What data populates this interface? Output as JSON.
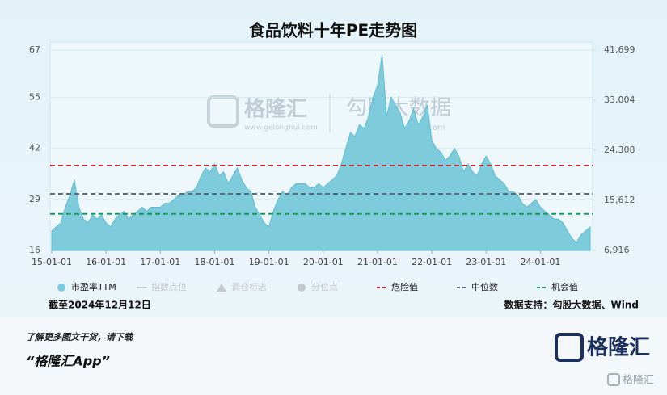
{
  "chart_data": {
    "type": "area",
    "title": "食品饮料十年PE走势图",
    "x": [
      "15-01-01",
      "15-02-01",
      "15-03-01",
      "15-04-01",
      "15-05-01",
      "15-06-01",
      "15-07-01",
      "15-08-01",
      "15-09-01",
      "15-10-01",
      "15-11-01",
      "15-12-01",
      "16-01-01",
      "16-02-01",
      "16-03-01",
      "16-04-01",
      "16-05-01",
      "16-06-01",
      "16-07-01",
      "16-08-01",
      "16-09-01",
      "16-10-01",
      "16-11-01",
      "16-12-01",
      "17-01-01",
      "17-02-01",
      "17-03-01",
      "17-04-01",
      "17-05-01",
      "17-06-01",
      "17-07-01",
      "17-08-01",
      "17-09-01",
      "17-10-01",
      "17-11-01",
      "17-12-01",
      "18-01-01",
      "18-02-01",
      "18-03-01",
      "18-04-01",
      "18-05-01",
      "18-06-01",
      "18-07-01",
      "18-08-01",
      "18-09-01",
      "18-10-01",
      "18-11-01",
      "18-12-01",
      "19-01-01",
      "19-02-01",
      "19-03-01",
      "19-04-01",
      "19-05-01",
      "19-06-01",
      "19-07-01",
      "19-08-01",
      "19-09-01",
      "19-10-01",
      "19-11-01",
      "19-12-01",
      "20-01-01",
      "20-02-01",
      "20-03-01",
      "20-04-01",
      "20-05-01",
      "20-06-01",
      "20-07-01",
      "20-08-01",
      "20-09-01",
      "20-10-01",
      "20-11-01",
      "20-12-01",
      "21-01-01",
      "21-02-01",
      "21-03-01",
      "21-04-01",
      "21-05-01",
      "21-06-01",
      "21-07-01",
      "21-08-01",
      "21-09-01",
      "21-10-01",
      "21-11-01",
      "21-12-01",
      "22-01-01",
      "22-02-01",
      "22-03-01",
      "22-04-01",
      "22-05-01",
      "22-06-01",
      "22-07-01",
      "22-08-01",
      "22-09-01",
      "22-10-01",
      "22-11-01",
      "22-12-01",
      "23-01-01",
      "23-02-01",
      "23-03-01",
      "23-04-01",
      "23-05-01",
      "23-06-01",
      "23-07-01",
      "23-08-01",
      "23-09-01",
      "23-10-01",
      "23-11-01",
      "23-12-01",
      "24-01-01",
      "24-02-01",
      "24-03-01",
      "24-04-01",
      "24-05-01",
      "24-06-01",
      "24-07-01",
      "24-08-01",
      "24-09-01",
      "24-10-01",
      "24-11-01",
      "24-12-01"
    ],
    "series": [
      {
        "name": "市盈率TTM",
        "color": "#7ecbdc",
        "values": [
          21,
          22,
          23,
          27,
          30,
          34,
          27,
          24,
          23,
          25,
          24,
          25,
          23,
          22,
          24,
          25,
          26,
          24,
          25,
          26,
          27,
          26,
          27,
          27,
          27,
          28,
          28,
          29,
          30,
          30,
          31,
          31,
          32,
          35,
          37,
          36,
          38,
          35,
          36,
          33,
          35,
          37,
          34,
          32,
          31,
          27,
          25,
          23,
          22,
          26,
          29,
          31,
          30,
          32,
          33,
          33,
          33,
          32,
          32,
          33,
          32,
          33,
          34,
          35,
          38,
          42,
          46,
          45,
          48,
          47,
          50,
          55,
          58,
          66,
          50,
          55,
          53,
          51,
          47,
          49,
          52,
          48,
          50,
          53,
          44,
          42,
          41,
          39,
          40,
          42,
          40,
          36,
          38,
          36,
          35,
          38,
          40,
          38,
          35,
          34,
          33,
          31,
          31,
          30,
          28,
          27,
          28,
          29,
          27,
          26,
          25,
          24,
          24,
          23,
          21,
          19,
          18,
          20,
          21,
          22
        ]
      }
    ],
    "legend_inactive": [
      {
        "name": "指数点位",
        "symbol": "line"
      },
      {
        "name": "调仓标志",
        "symbol": "triangle"
      },
      {
        "name": "分位点",
        "symbol": "circle"
      }
    ],
    "inactive_color": "#c4c8cc",
    "reference_lines": [
      {
        "name": "危险值",
        "value": 37.6,
        "color": "#c0282e"
      },
      {
        "name": "中位数",
        "value": 30.4,
        "color": "#5d6b7a"
      },
      {
        "name": "机会值",
        "value": 25.3,
        "color": "#1a9a5a"
      }
    ],
    "ylim": [
      16,
      67
    ],
    "yticks": [
      16,
      29,
      42,
      55,
      67
    ],
    "y2lim": [
      6916,
      41699
    ],
    "y2ticks": [
      {
        "value": 6916,
        "label": "6,916"
      },
      {
        "value": 15612,
        "label": "15,612"
      },
      {
        "value": 24308,
        "label": "24,308"
      },
      {
        "value": 33004,
        "label": "33,004"
      },
      {
        "value": 41699,
        "label": "41,699"
      }
    ],
    "grid": true,
    "date_note": "截至2024年12月12日",
    "source": "数据支持：勾股大数据、Wind"
  },
  "watermark": {
    "brand": "格隆汇",
    "brand_url": "www.gelonghui.com",
    "data_brand": "勾股大数据",
    "data_url": "www.gogudata.com"
  },
  "footer": {
    "line1": "了解更多图文干货，请下载",
    "line2": "“格隆汇App”",
    "logo": "格隆汇",
    "corner": "格隆汇"
  }
}
